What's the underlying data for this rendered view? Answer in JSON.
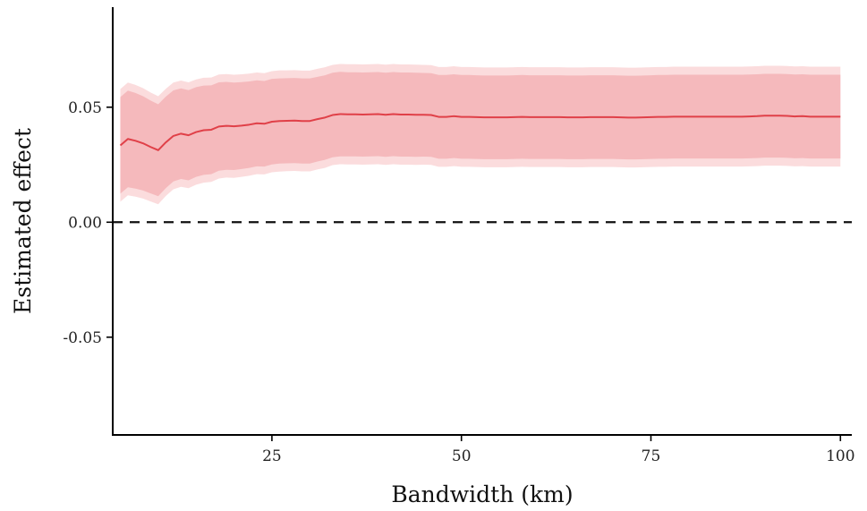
{
  "chart_data": {
    "type": "line",
    "xlabel": "Bandwidth (km)",
    "ylabel": "Estimated effect",
    "xlim": [
      4,
      101.5
    ],
    "ylim": [
      -0.0925,
      0.0935
    ],
    "xticks": [
      25,
      50,
      75,
      100
    ],
    "xtick_labels": [
      "25",
      "50",
      "75",
      "100"
    ],
    "yticks": [
      0.05,
      0.0,
      -0.05
    ],
    "ytick_labels": [
      "0.05",
      "0.00",
      "-0.05"
    ],
    "reference_line": {
      "y": 0,
      "style": "dashed"
    },
    "grid": false,
    "x": [
      5,
      6,
      7,
      8,
      9,
      10,
      11,
      12,
      13,
      14,
      15,
      16,
      17,
      18,
      19,
      20,
      21,
      22,
      23,
      24,
      25,
      26,
      27,
      28,
      29,
      30,
      31,
      32,
      33,
      34,
      35,
      36,
      37,
      38,
      39,
      40,
      41,
      42,
      43,
      44,
      45,
      46,
      47,
      48,
      49,
      50,
      51,
      52,
      53,
      54,
      55,
      56,
      57,
      58,
      59,
      60,
      61,
      62,
      63,
      64,
      65,
      66,
      67,
      68,
      69,
      70,
      71,
      72,
      73,
      74,
      75,
      76,
      77,
      78,
      79,
      80,
      81,
      82,
      83,
      84,
      85,
      86,
      87,
      88,
      89,
      90,
      91,
      92,
      93,
      94,
      95,
      96,
      97,
      98,
      99,
      100
    ],
    "series": [
      {
        "values": [
          0.0334,
          0.0362,
          0.0354,
          0.0343,
          0.0327,
          0.0313,
          0.0347,
          0.0375,
          0.0385,
          0.0378,
          0.0392,
          0.04,
          0.0402,
          0.0416,
          0.0419,
          0.0417,
          0.042,
          0.0424,
          0.043,
          0.0428,
          0.0437,
          0.044,
          0.0441,
          0.0442,
          0.044,
          0.044,
          0.0448,
          0.0455,
          0.0466,
          0.047,
          0.0469,
          0.0469,
          0.0468,
          0.0469,
          0.047,
          0.0467,
          0.047,
          0.0468,
          0.0468,
          0.0467,
          0.0467,
          0.0466,
          0.0458,
          0.0458,
          0.0461,
          0.0458,
          0.0458,
          0.0457,
          0.0456,
          0.0456,
          0.0456,
          0.0456,
          0.0457,
          0.0458,
          0.0457,
          0.0457,
          0.0457,
          0.0457,
          0.0457,
          0.0456,
          0.0456,
          0.0456,
          0.0457,
          0.0457,
          0.0457,
          0.0457,
          0.0456,
          0.0455,
          0.0455,
          0.0456,
          0.0457,
          0.0458,
          0.0458,
          0.0459,
          0.0459,
          0.0459,
          0.0459,
          0.0459,
          0.0459,
          0.0459,
          0.0459,
          0.0459,
          0.0459,
          0.046,
          0.0461,
          0.0463,
          0.0463,
          0.0463,
          0.0462,
          0.046,
          0.0461,
          0.0459,
          0.0459,
          0.0459,
          0.0459,
          0.0459
        ],
        "ci_inner_halfwidth": [
          0.021,
          0.021,
          0.0208,
          0.0205,
          0.0202,
          0.02,
          0.0199,
          0.0198,
          0.0197,
          0.0196,
          0.0195,
          0.0194,
          0.0193,
          0.0192,
          0.0191,
          0.019,
          0.0189,
          0.0188,
          0.0187,
          0.0186,
          0.0186,
          0.0185,
          0.0185,
          0.0185,
          0.0185,
          0.0185,
          0.0184,
          0.0184,
          0.0184,
          0.0184,
          0.0183,
          0.0183,
          0.0183,
          0.0183,
          0.0183,
          0.0183,
          0.0183,
          0.0183,
          0.0183,
          0.0183,
          0.0182,
          0.0182,
          0.0182,
          0.0182,
          0.0182,
          0.0182,
          0.0182,
          0.0182,
          0.0182,
          0.0182,
          0.0182,
          0.0182,
          0.0182,
          0.0182,
          0.0182,
          0.0182,
          0.0182,
          0.0182,
          0.0182,
          0.0182,
          0.0182,
          0.0182,
          0.0182,
          0.0182,
          0.0182,
          0.0182,
          0.0182,
          0.0182,
          0.0182,
          0.0182,
          0.0182,
          0.0182,
          0.0182,
          0.0182,
          0.0182,
          0.0182,
          0.0182,
          0.0182,
          0.0182,
          0.0182,
          0.0182,
          0.0182,
          0.0182,
          0.0182,
          0.0182,
          0.0182,
          0.0182,
          0.0182,
          0.0182,
          0.0182,
          0.0182,
          0.0182,
          0.0182,
          0.0182,
          0.0182,
          0.0182
        ],
        "ci_outer_halfwidth": [
          0.0245,
          0.0245,
          0.0243,
          0.024,
          0.0237,
          0.0235,
          0.0233,
          0.0232,
          0.0231,
          0.023,
          0.0229,
          0.0228,
          0.0227,
          0.0226,
          0.0225,
          0.0224,
          0.0223,
          0.0222,
          0.0221,
          0.022,
          0.022,
          0.022,
          0.0219,
          0.0219,
          0.0219,
          0.0219,
          0.0219,
          0.0219,
          0.0218,
          0.0218,
          0.0218,
          0.0218,
          0.0218,
          0.0218,
          0.0218,
          0.0218,
          0.0218,
          0.0218,
          0.0218,
          0.0218,
          0.0217,
          0.0217,
          0.0217,
          0.0217,
          0.0217,
          0.0217,
          0.0217,
          0.0217,
          0.0217,
          0.0217,
          0.0217,
          0.0217,
          0.0217,
          0.0217,
          0.0217,
          0.0217,
          0.0217,
          0.0217,
          0.0217,
          0.0217,
          0.0217,
          0.0217,
          0.0217,
          0.0217,
          0.0217,
          0.0217,
          0.0217,
          0.0217,
          0.0217,
          0.0217,
          0.0217,
          0.0217,
          0.0217,
          0.0217,
          0.0217,
          0.0217,
          0.0217,
          0.0217,
          0.0217,
          0.0217,
          0.0217,
          0.0217,
          0.0217,
          0.0217,
          0.0217,
          0.0217,
          0.0217,
          0.0217,
          0.0217,
          0.0217,
          0.0217,
          0.0217,
          0.0217,
          0.0217,
          0.0217,
          0.0217
        ]
      }
    ],
    "colors": {
      "line": "#e04048",
      "ci_inner": "#f5b9bc",
      "ci_outer": "#fbdcdd",
      "axis": "#000000",
      "reference_line": "#111111"
    }
  }
}
